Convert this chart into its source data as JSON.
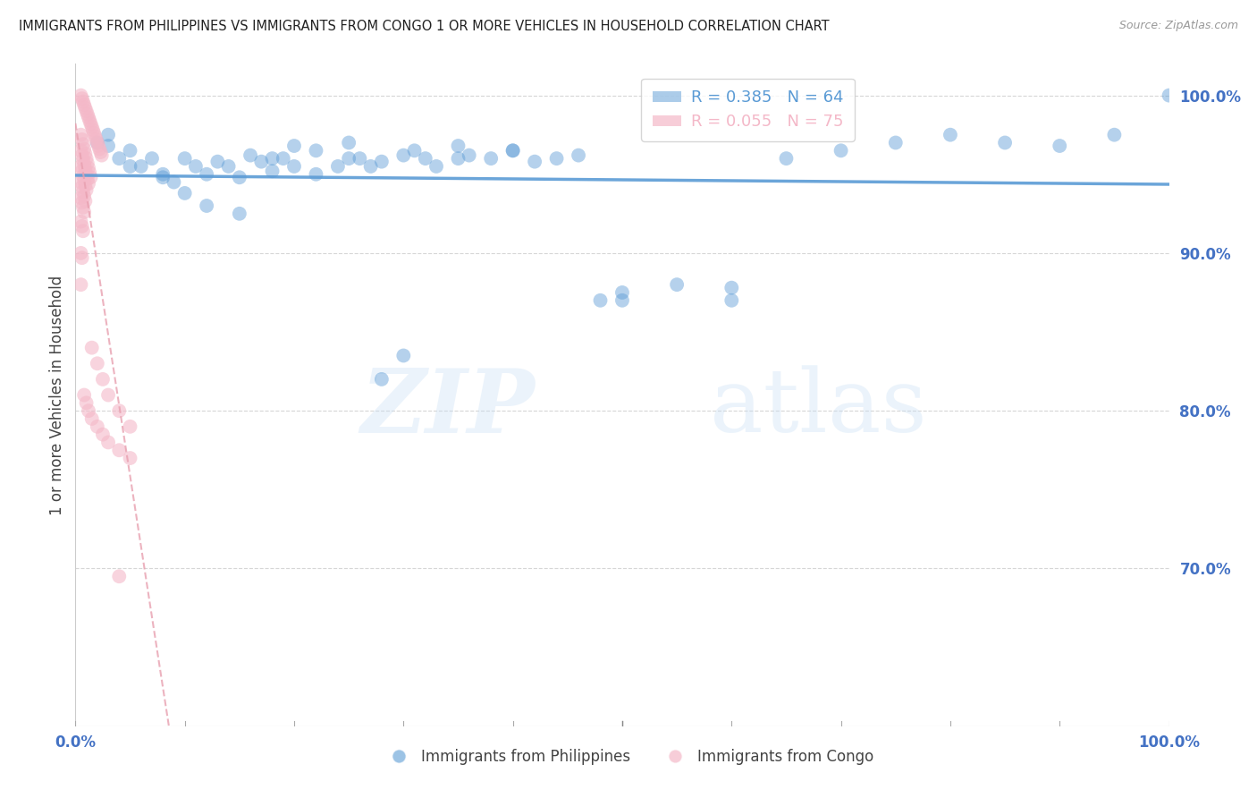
{
  "title": "IMMIGRANTS FROM PHILIPPINES VS IMMIGRANTS FROM CONGO 1 OR MORE VEHICLES IN HOUSEHOLD CORRELATION CHART",
  "source": "Source: ZipAtlas.com",
  "ylabel": "1 or more Vehicles in Household",
  "ytick_labels": [
    "100.0%",
    "90.0%",
    "80.0%",
    "70.0%"
  ],
  "ytick_values": [
    1.0,
    0.9,
    0.8,
    0.7
  ],
  "watermark_part1": "ZIP",
  "watermark_part2": "atlas",
  "legend_phil_R": 0.385,
  "legend_phil_N": 64,
  "legend_congo_R": 0.055,
  "legend_congo_N": 75,
  "philippines_line_color": "#5b9bd5",
  "congo_line_color": "#f4b8c8",
  "congo_line_dash_color": "#e8a0b0",
  "background_color": "#ffffff",
  "grid_color": "#cccccc",
  "axis_tick_color": "#4472c4",
  "philippines_x": [
    0.02,
    0.03,
    0.04,
    0.05,
    0.06,
    0.07,
    0.08,
    0.09,
    0.1,
    0.11,
    0.12,
    0.13,
    0.14,
    0.15,
    0.16,
    0.17,
    0.18,
    0.19,
    0.2,
    0.22,
    0.24,
    0.25,
    0.26,
    0.27,
    0.28,
    0.3,
    0.31,
    0.32,
    0.33,
    0.35,
    0.36,
    0.38,
    0.4,
    0.42,
    0.44,
    0.46,
    0.48,
    0.5,
    0.55,
    0.6,
    0.65,
    0.7,
    0.75,
    0.8,
    0.85,
    0.9,
    0.95,
    1.0,
    0.03,
    0.05,
    0.08,
    0.1,
    0.12,
    0.15,
    0.18,
    0.2,
    0.22,
    0.25,
    0.28,
    0.3,
    0.35,
    0.4,
    0.5,
    0.6
  ],
  "philippines_y": [
    0.97,
    0.975,
    0.96,
    0.965,
    0.955,
    0.96,
    0.95,
    0.945,
    0.96,
    0.955,
    0.95,
    0.958,
    0.955,
    0.948,
    0.962,
    0.958,
    0.952,
    0.96,
    0.968,
    0.965,
    0.955,
    0.97,
    0.96,
    0.955,
    0.958,
    0.962,
    0.965,
    0.96,
    0.955,
    0.968,
    0.962,
    0.96,
    0.965,
    0.958,
    0.96,
    0.962,
    0.87,
    0.875,
    0.88,
    0.87,
    0.96,
    0.965,
    0.97,
    0.975,
    0.97,
    0.968,
    0.975,
    1.0,
    0.968,
    0.955,
    0.948,
    0.938,
    0.93,
    0.925,
    0.96,
    0.955,
    0.95,
    0.96,
    0.82,
    0.835,
    0.96,
    0.965,
    0.87,
    0.878
  ],
  "congo_x": [
    0.005,
    0.006,
    0.007,
    0.008,
    0.009,
    0.01,
    0.011,
    0.012,
    0.013,
    0.014,
    0.015,
    0.016,
    0.017,
    0.018,
    0.019,
    0.02,
    0.021,
    0.022,
    0.023,
    0.024,
    0.005,
    0.006,
    0.007,
    0.008,
    0.009,
    0.01,
    0.011,
    0.012,
    0.013,
    0.014,
    0.005,
    0.006,
    0.007,
    0.008,
    0.009,
    0.01,
    0.011,
    0.012,
    0.005,
    0.006,
    0.007,
    0.008,
    0.009,
    0.01,
    0.005,
    0.006,
    0.007,
    0.008,
    0.009,
    0.005,
    0.006,
    0.007,
    0.008,
    0.005,
    0.006,
    0.007,
    0.005,
    0.006,
    0.005,
    0.015,
    0.02,
    0.025,
    0.03,
    0.04,
    0.05,
    0.008,
    0.01,
    0.012,
    0.015,
    0.02,
    0.025,
    0.03,
    0.04,
    0.05
  ],
  "congo_y": [
    1.0,
    0.998,
    0.996,
    0.994,
    0.992,
    0.99,
    0.988,
    0.986,
    0.984,
    0.982,
    0.98,
    0.978,
    0.976,
    0.974,
    0.972,
    0.97,
    0.968,
    0.966,
    0.964,
    0.962,
    0.975,
    0.972,
    0.969,
    0.966,
    0.963,
    0.96,
    0.957,
    0.954,
    0.951,
    0.948,
    0.965,
    0.962,
    0.959,
    0.956,
    0.953,
    0.95,
    0.947,
    0.944,
    0.955,
    0.952,
    0.949,
    0.946,
    0.943,
    0.94,
    0.945,
    0.942,
    0.939,
    0.936,
    0.933,
    0.935,
    0.932,
    0.929,
    0.926,
    0.92,
    0.917,
    0.914,
    0.9,
    0.897,
    0.88,
    0.84,
    0.83,
    0.82,
    0.81,
    0.8,
    0.79,
    0.81,
    0.805,
    0.8,
    0.795,
    0.79,
    0.785,
    0.78,
    0.775,
    0.77
  ],
  "congo_outlier_x": [
    0.04
  ],
  "congo_outlier_y": [
    0.695
  ]
}
